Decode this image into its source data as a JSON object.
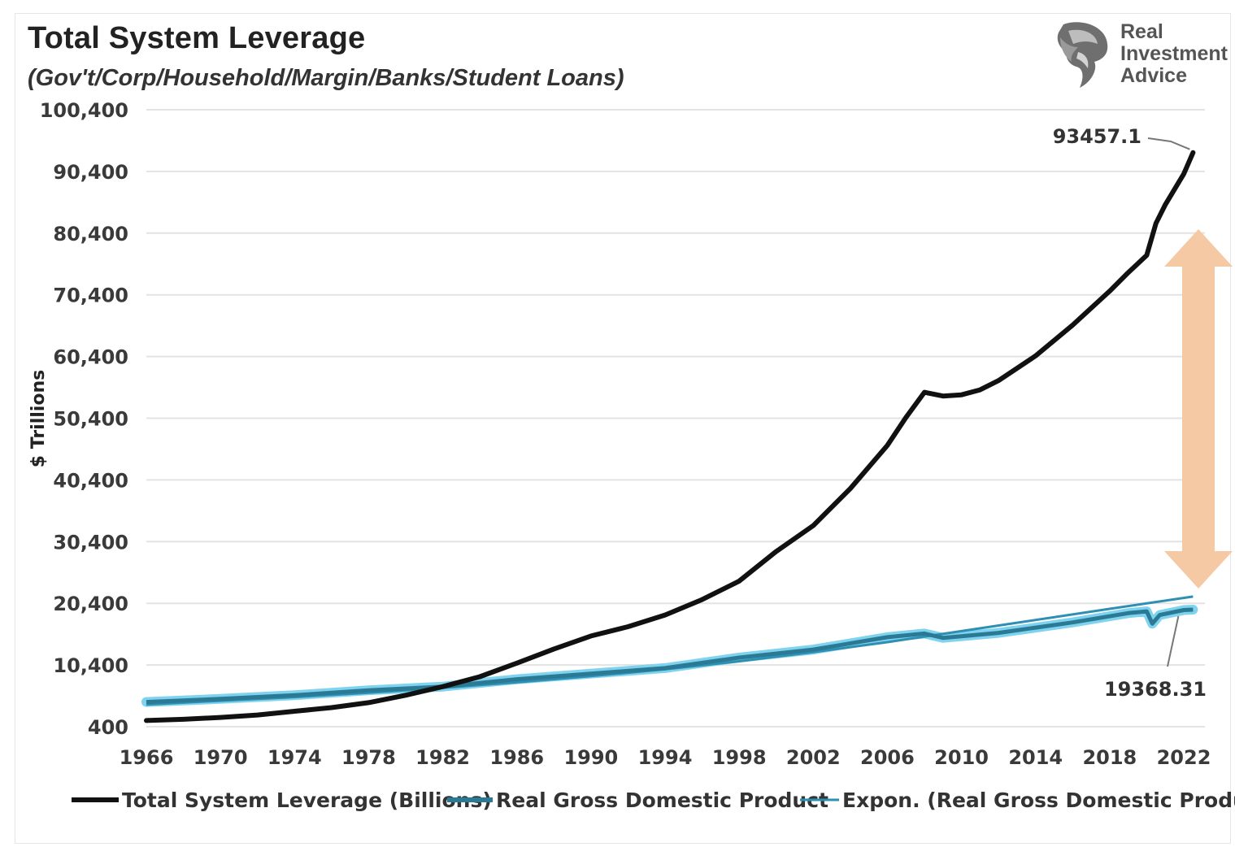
{
  "chart_data": {
    "type": "line",
    "title": "Total System Leverage",
    "subtitle": "(Gov't/Corp/Household/Margin/Banks/Student Loans)",
    "ylabel": "$ Trillions",
    "xlabel": "",
    "xlim": [
      1966,
      2023
    ],
    "ylim": [
      400,
      100400
    ],
    "y_ticks": [
      "100,400",
      "90,400",
      "80,400",
      "70,400",
      "60,400",
      "50,400",
      "40,400",
      "30,400",
      "20,400",
      "10,400",
      "400"
    ],
    "y_tick_values": [
      100400,
      90400,
      80400,
      70400,
      60400,
      50400,
      40400,
      30400,
      20400,
      10400,
      400
    ],
    "x_ticks": [
      "1966",
      "1970",
      "1974",
      "1978",
      "1982",
      "1986",
      "1990",
      "1994",
      "1998",
      "2002",
      "2006",
      "2010",
      "2014",
      "2018",
      "2022"
    ],
    "x_tick_values": [
      1966,
      1970,
      1974,
      1978,
      1982,
      1986,
      1990,
      1994,
      1998,
      2002,
      2006,
      2010,
      2014,
      2018,
      2022
    ],
    "grid": true,
    "legend_position": "bottom",
    "colors": {
      "leverage": "#111111",
      "gdp": "#2b7a95",
      "gdp_halo": "#7fd3ee",
      "trend": "#2e8fb2",
      "arrow": "#f5c9a3",
      "grid": "#e3e3e3"
    },
    "series": [
      {
        "name": "Total System Leverage (Billions)",
        "style": "thick-black",
        "x": [
          1966,
          1968,
          1970,
          1972,
          1974,
          1976,
          1978,
          1980,
          1982,
          1984,
          1986,
          1988,
          1990,
          1992,
          1994,
          1996,
          1998,
          2000,
          2002,
          2004,
          2006,
          2007,
          2008,
          2009,
          2010,
          2011,
          2012,
          2014,
          2016,
          2018,
          2019,
          2020,
          2020.5,
          2021,
          2022,
          2022.5
        ],
        "values": [
          1400,
          1600,
          1900,
          2300,
          2900,
          3500,
          4300,
          5500,
          6900,
          8500,
          10700,
          13000,
          15100,
          16600,
          18500,
          21000,
          24000,
          28800,
          33000,
          39000,
          46000,
          50500,
          54600,
          54000,
          54200,
          55000,
          56500,
          60500,
          65500,
          71000,
          74000,
          76800,
          82000,
          85000,
          90000,
          93457.1
        ]
      },
      {
        "name": "Real Gross Domestic Product",
        "style": "teal",
        "x": [
          1966,
          1970,
          1974,
          1978,
          1982,
          1986,
          1990,
          1994,
          1998,
          2002,
          2006,
          2008,
          2009,
          2012,
          2016,
          2019,
          2020,
          2020.3,
          2020.7,
          2022,
          2022.5
        ],
        "values": [
          4400,
          4900,
          5500,
          6300,
          6900,
          8100,
          9000,
          9900,
          11600,
          12900,
          14900,
          15500,
          14800,
          15600,
          17300,
          18800,
          19100,
          17100,
          18500,
          19300,
          19368.31
        ]
      },
      {
        "name": "Expon. (Real Gross Domestic Product)",
        "style": "thin-blue",
        "x": [
          1966,
          1970,
          1974,
          1978,
          1982,
          1986,
          1990,
          1994,
          1998,
          2002,
          2006,
          2010,
          2014,
          2018,
          2022.5
        ],
        "values": [
          4000,
          4600,
          5200,
          5900,
          6700,
          7600,
          8600,
          9700,
          11000,
          12500,
          14100,
          15900,
          17700,
          19500,
          21500
        ]
      }
    ],
    "annotations": [
      {
        "text": "93457.1",
        "series": 0
      },
      {
        "text": "19368.31",
        "series": 1
      }
    ]
  },
  "logo": {
    "name": "Real Investment Advice",
    "lines": [
      "Real",
      "Investment",
      "Advice"
    ]
  }
}
